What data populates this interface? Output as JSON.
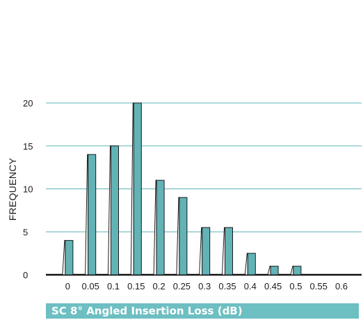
{
  "chart_data": {
    "type": "bar",
    "title": "SC 8° Angled Insertion Loss (dB)",
    "xlabel": "SC 8° Angled Insertion Loss (dB)",
    "ylabel": "FREQUENCY",
    "categories": [
      "0",
      "0.05",
      "0.1",
      "0.15",
      "0.2",
      "0.25",
      "0.3",
      "0.35",
      "0.4",
      "0.45",
      "0.5",
      "0.55",
      "0.6"
    ],
    "values": [
      4,
      14,
      15,
      20,
      11,
      9,
      5.5,
      5.5,
      2.5,
      1,
      1,
      0,
      0
    ],
    "ylim": [
      0,
      20
    ],
    "yticks": [
      0,
      5,
      10,
      15,
      20
    ],
    "grid": true,
    "legend": "none",
    "colors": {
      "bar_front": "#62b3b6",
      "bar_side": "#ffffff",
      "bar_edge": "#1a1a1a",
      "grid": "#5db4b8",
      "title_bg": "#6dbfc2"
    }
  }
}
